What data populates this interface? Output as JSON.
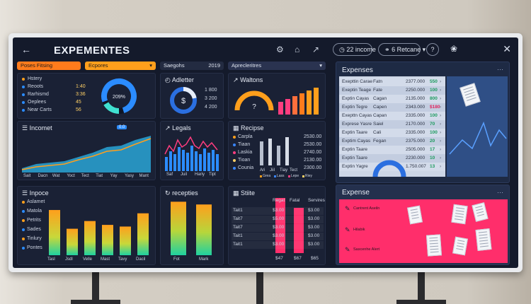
{
  "app": {
    "title": "EXPEMENTES"
  },
  "topbar": {
    "back_icon": "arrow-left-icon",
    "pill1": "22 income",
    "pill2": "6 Retcane",
    "close_icon": "close-icon"
  },
  "tabs": {
    "left1": "Poses Fitsing",
    "left2": "Ecpores",
    "mid1": "Saegohs",
    "mid1_year": "2019",
    "mid2": "Aprecleritres"
  },
  "kpi_list": {
    "items": [
      {
        "label": "Hstery",
        "value": ""
      },
      {
        "label": "Reoots",
        "value": "1:40"
      },
      {
        "label": "Rarhismd",
        "value": "3:36"
      },
      {
        "label": "Oeplees",
        "value": "45"
      },
      {
        "label": "Near Carts",
        "value": "56"
      }
    ],
    "gauge_label": "209%"
  },
  "adletter": {
    "title": "Adletter",
    "values": [
      "1 800",
      "3 200",
      "4 200"
    ]
  },
  "waltons": {
    "title": "Waltons",
    "gauge_glyph": "?"
  },
  "income": {
    "title": "Incomet",
    "badge": "0.0",
    "x": [
      "Sait",
      "Dacn",
      "Wat",
      "Yoct",
      "Tect",
      "Tiat",
      "Yay",
      "Yasy",
      "Mant"
    ]
  },
  "legals": {
    "title": "Legals",
    "x": [
      "Saf",
      "Juil",
      "Hariy",
      "Tipt"
    ]
  },
  "recipes": {
    "title": "Recipse",
    "items": [
      {
        "label": "Carpla",
        "value": "2530.00",
        "color": "#ff9f1c"
      },
      {
        "label": "Tiaan",
        "value": "2530.00",
        "color": "#3a86ff"
      },
      {
        "label": "Laskia",
        "value": "2740.00",
        "color": "#ff3d7f"
      },
      {
        "label": "Tioan",
        "value": "2130.00",
        "color": "#ffd166"
      },
      {
        "label": "Counia",
        "value": "2300.00",
        "color": "#3a86ff"
      }
    ],
    "x": [
      "Ari",
      "Jiil",
      "Tiay",
      "Tect"
    ],
    "legend": [
      "Grea",
      "Lass",
      "Lepe",
      "Riey"
    ]
  },
  "inpoce": {
    "title": "Inpoce",
    "legend": [
      "Aslamet",
      "Matola",
      "Petrits",
      "Sades",
      "Tinlury",
      "Pontes"
    ],
    "x": [
      "Tasl",
      "Jsdl",
      "Velle",
      "Mast",
      "Tavy",
      "Dacil"
    ],
    "values": [
      0.82,
      0.48,
      0.62,
      0.55,
      0.52,
      0.76
    ],
    "colors": [
      "#ff9f1c",
      "#ffd166",
      "#ffe15d",
      "#ffd166",
      "#f5a623",
      "#ff9f1c"
    ]
  },
  "recepties": {
    "title": "recepties",
    "x": [
      "Fot",
      "Mark"
    ],
    "values": [
      0.97,
      0.92
    ]
  },
  "stiite": {
    "title": "Stiite",
    "headers": [
      "",
      "Regat",
      "Fatal",
      "Servires"
    ],
    "rows": [
      [
        "Tait1",
        "$3.00",
        "",
        "$3.00"
      ],
      [
        "Tait7",
        "$5.00",
        "",
        "$3.00"
      ],
      [
        "Tait7",
        "$3.00",
        "",
        "$3.00"
      ],
      [
        "Tait1",
        "$3.00",
        "",
        "$3.00"
      ],
      [
        "Tait1",
        "$3.00",
        "",
        "$3.00"
      ]
    ],
    "footer": [
      "$47",
      "$67",
      "$65"
    ]
  },
  "expenses": {
    "title": "Expenses",
    "rows": [
      {
        "name": "Exepttin Carae",
        "type": "Fatn",
        "amount": "2377.000",
        "v": "550",
        "vc": "#1c9b5e"
      },
      {
        "name": "Exeptin Teage",
        "type": "Fate",
        "amount": "2250.000",
        "v": "100",
        "vc": "#1c9b5e"
      },
      {
        "name": "Exptin Cayas",
        "type": "Cagan",
        "amount": "2135.000",
        "v": "800",
        "vc": "#1c9b5e"
      },
      {
        "name": "Exptin Tegre",
        "type": "Capen",
        "amount": "2343.000",
        "v": "$180",
        "vc": "#e0245e"
      },
      {
        "name": "Exepttn Cayas",
        "type": "Capan",
        "amount": "2335.000",
        "v": "100",
        "vc": "#1c9b5e"
      },
      {
        "name": "Exprese Yasre",
        "type": "Saiel",
        "amount": "2170.000",
        "v": "70",
        "vc": "#1c9b5e"
      },
      {
        "name": "Exptin Taare",
        "type": "Cali",
        "amount": "2335.000",
        "v": "100",
        "vc": "#1c9b5e"
      },
      {
        "name": "Exptim Cayas",
        "type": "Fegan",
        "amount": "2375.000",
        "v": "20",
        "vc": "#1c9b5e"
      },
      {
        "name": "Exptin Taare",
        "type": "",
        "amount": "2505.000",
        "v": "17",
        "vc": "#1c9b5e"
      },
      {
        "name": "Exptin Taare",
        "type": "",
        "amount": "2230.000",
        "v": "10",
        "vc": "#1c9b5e"
      },
      {
        "name": "Exptin Yagre",
        "type": "",
        "amount": "1.750.007",
        "v": "13",
        "vc": "#1c9b5e"
      }
    ]
  },
  "expense2": {
    "title": "Expense",
    "notes": [
      "Cantrent Aseiln",
      "Hilabik",
      "Sascenhe Alert"
    ]
  }
}
